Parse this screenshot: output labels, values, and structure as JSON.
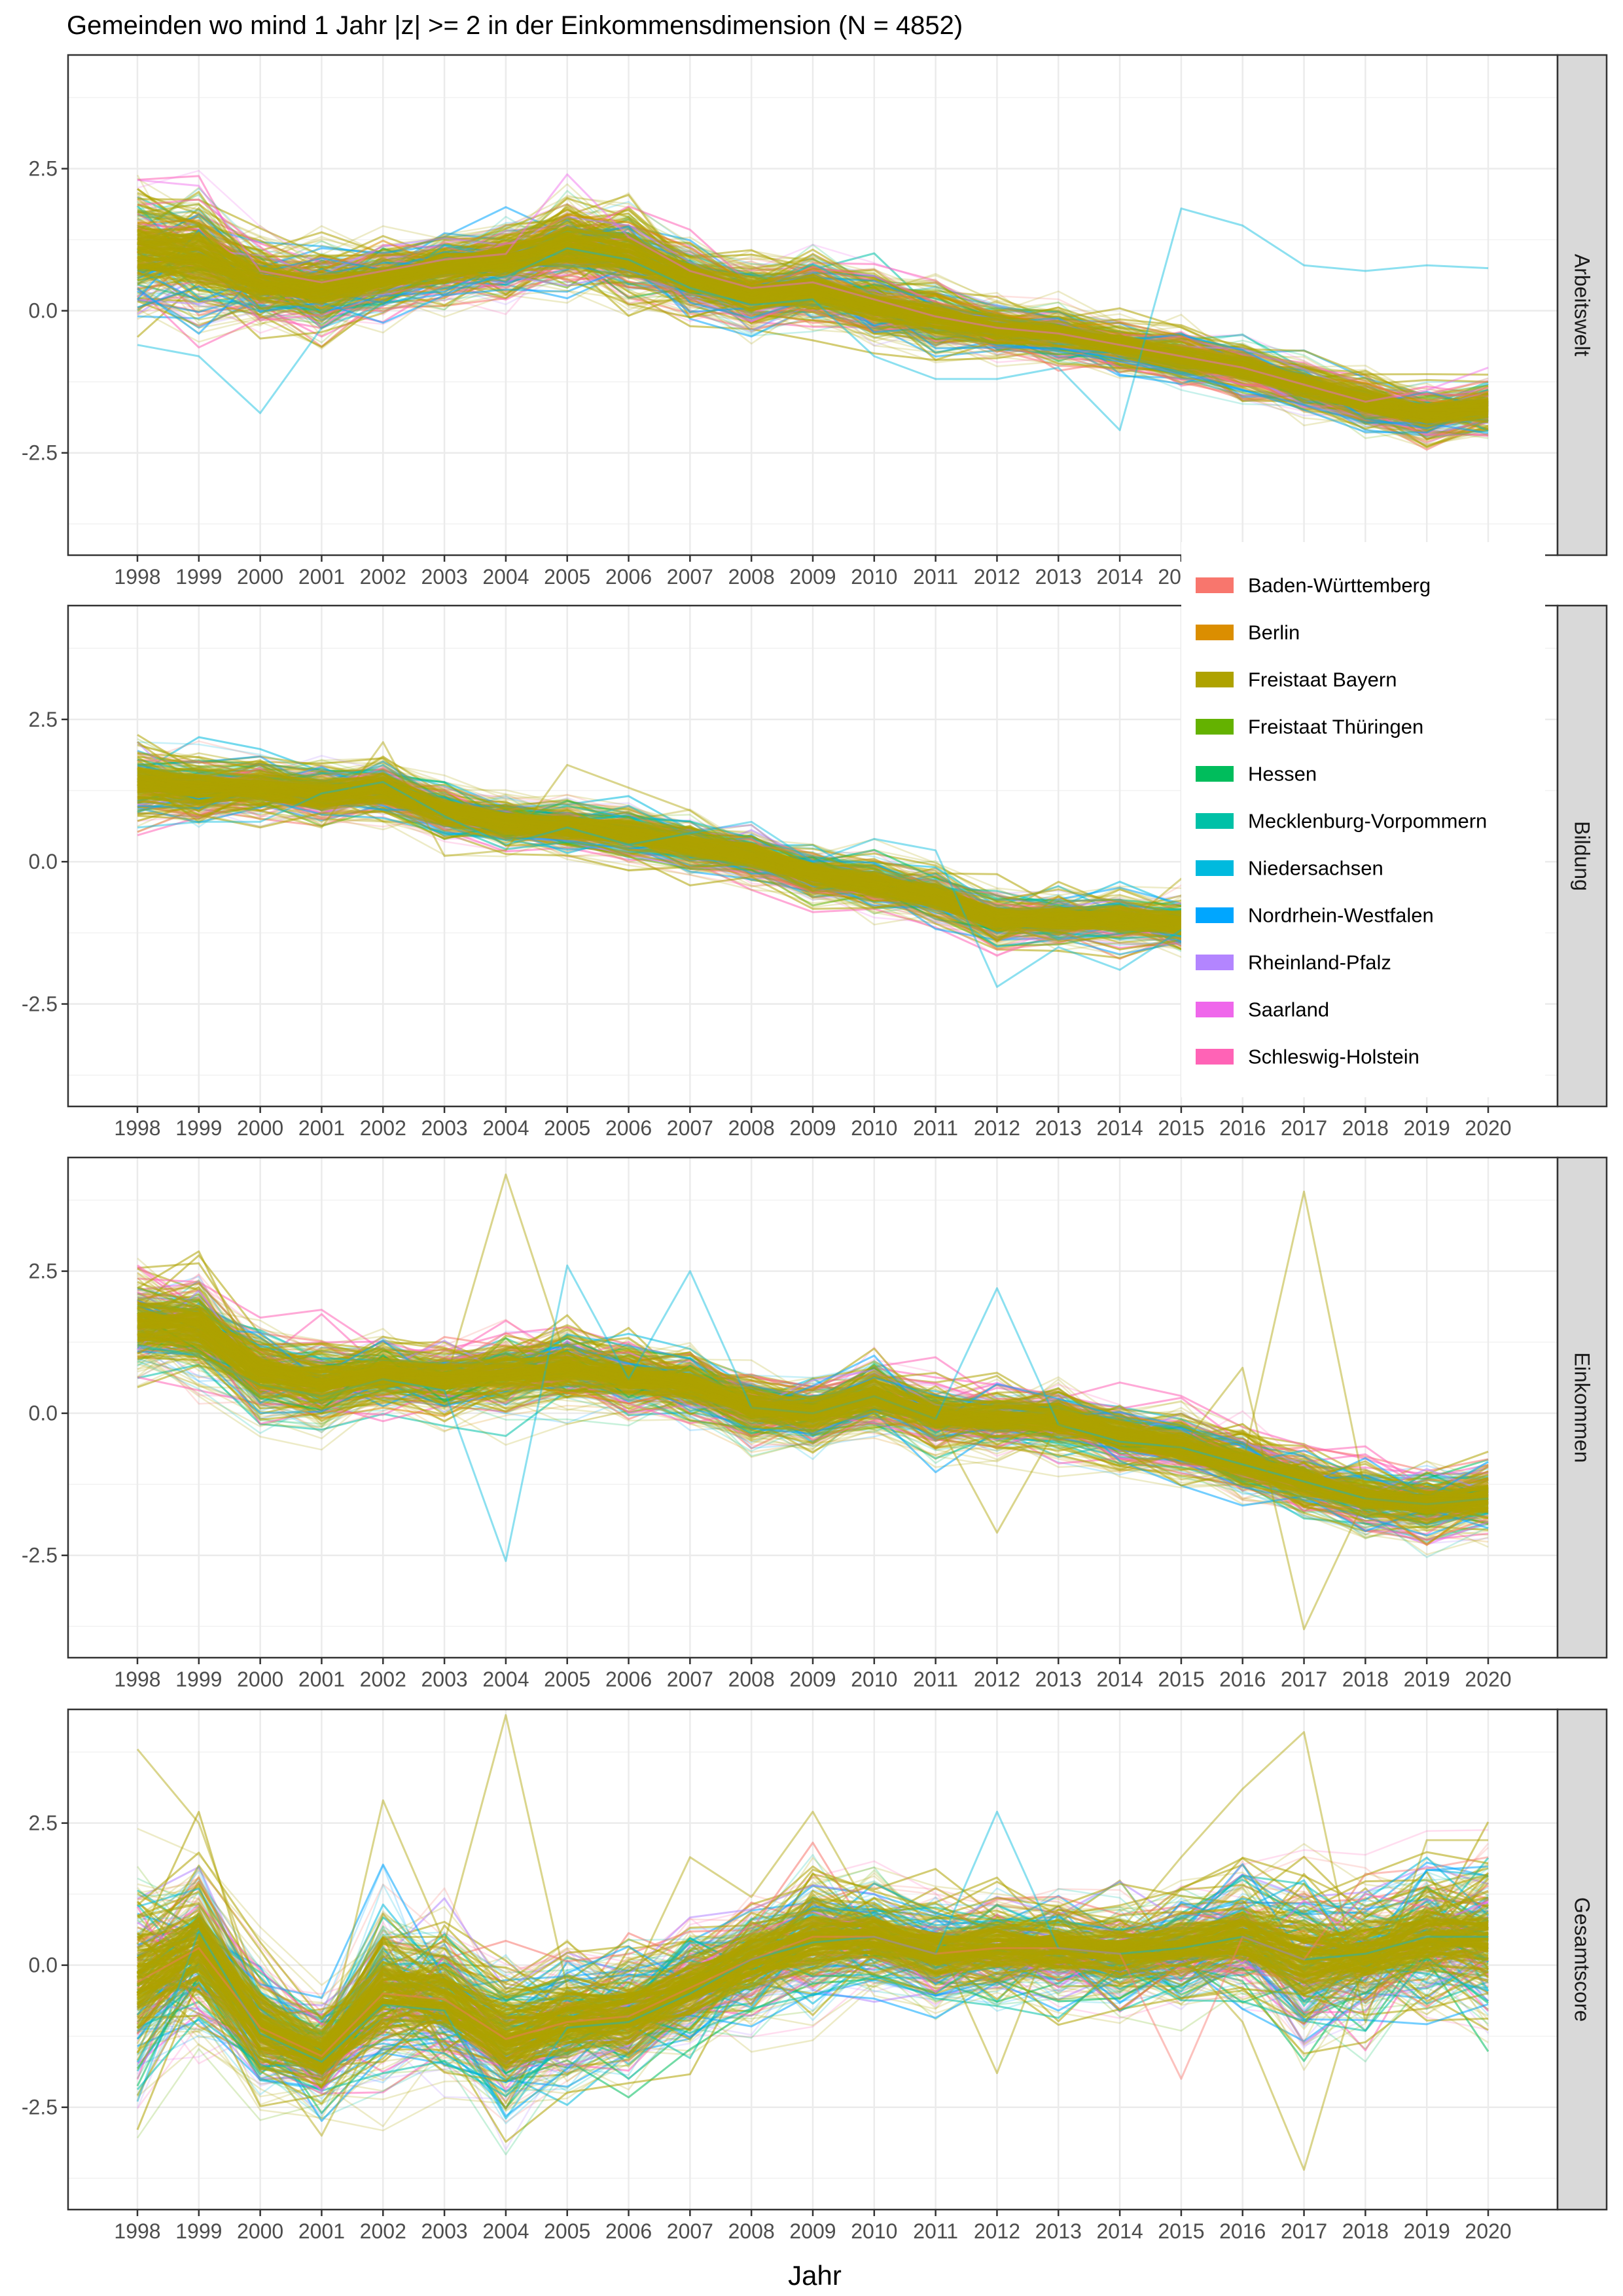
{
  "chart_data": {
    "type": "line",
    "title": "Gemeinden wo mind 1 Jahr |z| >= 2 in der Einkommensdimension (N = 4852)",
    "xlabel": "Jahr",
    "x": [
      1998,
      1999,
      2000,
      2001,
      2002,
      2003,
      2004,
      2005,
      2006,
      2007,
      2008,
      2009,
      2010,
      2011,
      2012,
      2013,
      2014,
      2015,
      2016,
      2017,
      2018,
      2019,
      2020
    ],
    "x_tick_labels": [
      "1998",
      "1999",
      "2000",
      "2001",
      "2002",
      "2003",
      "2004",
      "2005",
      "2006",
      "2007",
      "2008",
      "2009",
      "2010",
      "2011",
      "2012",
      "2013",
      "2014",
      "2015",
      "2016",
      "2017",
      "2018",
      "2019",
      "2020"
    ],
    "ylim": [
      -4.3,
      4.5
    ],
    "y_ticks": [
      2.5,
      0.0,
      -2.5
    ],
    "y_tick_labels": [
      "2.5",
      "0.0",
      "-2.5"
    ],
    "grid": true,
    "legend_position": "right (overlapping upper panels)",
    "legend": [
      {
        "name": "Baden-Württemberg",
        "color": "#F8766D"
      },
      {
        "name": "Berlin",
        "color": "#DB8E00"
      },
      {
        "name": "Freistaat Bayern",
        "color": "#AEA200"
      },
      {
        "name": "Freistaat Thüringen",
        "color": "#64B200"
      },
      {
        "name": "Hessen",
        "color": "#00BD5C"
      },
      {
        "name": "Mecklenburg-Vorpommern",
        "color": "#00C1A7"
      },
      {
        "name": "Niedersachsen",
        "color": "#00BADE"
      },
      {
        "name": "Nordrhein-Westfalen",
        "color": "#00A6FF"
      },
      {
        "name": "Rheinland-Pfalz",
        "color": "#B385FF"
      },
      {
        "name": "Saarland",
        "color": "#EF67EB"
      },
      {
        "name": "Schleswig-Holstein",
        "color": "#FF63B6"
      }
    ],
    "panels": [
      {
        "label": "Arbeitswelt",
        "central_trend": [
          1.1,
          1.0,
          0.5,
          0.4,
          0.6,
          0.8,
          0.9,
          1.2,
          1.0,
          0.6,
          0.3,
          0.4,
          0.1,
          -0.1,
          -0.3,
          -0.4,
          -0.6,
          -0.8,
          -1.0,
          -1.3,
          -1.6,
          -1.8,
          -1.7
        ],
        "spread": [
          0.7,
          0.7,
          0.5,
          0.5,
          0.4,
          0.4,
          0.4,
          0.5,
          0.5,
          0.4,
          0.4,
          0.4,
          0.4,
          0.4,
          0.3,
          0.3,
          0.3,
          0.3,
          0.3,
          0.3,
          0.3,
          0.3,
          0.3
        ],
        "outliers": [
          {
            "values": [
              -0.6,
              -0.8,
              -1.8,
              -0.3,
              0.1,
              0.4,
              0.6,
              1.1,
              0.9,
              0.4,
              0.1,
              0.2,
              -0.8,
              -1.2,
              -1.2,
              -1.0,
              -2.1,
              1.8,
              1.5,
              0.8,
              0.7,
              0.8,
              0.75
            ],
            "series": "Niedersachsen"
          },
          {
            "values": [
              2.3,
              2.2,
              0.7,
              0.5,
              0.7,
              0.9,
              1.0,
              2.4,
              1.3,
              0.7,
              0.4,
              0.5,
              0.2,
              -0.1,
              -0.3,
              -0.4,
              -0.6,
              -0.8,
              -1.0,
              -1.3,
              -1.6,
              -1.4,
              -1.0
            ],
            "series": "Saarland"
          }
        ]
      },
      {
        "label": "Bildung",
        "central_trend": [
          1.4,
          1.3,
          1.3,
          1.2,
          1.3,
          0.9,
          0.7,
          0.6,
          0.5,
          0.3,
          0.1,
          -0.2,
          -0.4,
          -0.6,
          -1.0,
          -1.0,
          -1.0,
          -1.1,
          -1.2,
          -1.3,
          -1.4,
          -1.5,
          -1.6
        ],
        "spread": [
          0.4,
          0.4,
          0.35,
          0.35,
          0.35,
          0.3,
          0.3,
          0.3,
          0.3,
          0.3,
          0.3,
          0.3,
          0.3,
          0.3,
          0.3,
          0.3,
          0.3,
          0.3,
          0.3,
          0.3,
          0.3,
          0.3,
          0.3
        ],
        "outliers": [
          {
            "values": [
              0.6,
              0.7,
              0.7,
              1.2,
              1.4,
              0.8,
              0.3,
              0.6,
              0.3,
              0.5,
              0.7,
              0.0,
              0.4,
              0.2,
              -2.2,
              -1.5,
              -1.9,
              -1.2,
              -1.2,
              -1.3,
              -1.4,
              -1.5,
              -1.6
            ],
            "series": "Niedersachsen"
          },
          {
            "values": [
              0.9,
              1.0,
              0.9,
              0.6,
              2.1,
              0.1,
              0.2,
              1.7,
              1.3,
              0.9,
              0.2,
              -0.4,
              -0.5,
              -0.6,
              -1.4,
              -0.6,
              -1.2,
              -0.3,
              -1.2,
              -1.3,
              -1.4,
              -1.5,
              -1.6
            ],
            "series": "Freistaat Bayern"
          }
        ]
      },
      {
        "label": "Einkommen",
        "central_trend": [
          1.6,
          1.5,
          0.7,
          0.5,
          0.7,
          0.6,
          0.7,
          0.8,
          0.6,
          0.5,
          0.1,
          0.0,
          0.3,
          -0.1,
          -0.1,
          -0.1,
          -0.4,
          -0.6,
          -0.9,
          -1.2,
          -1.5,
          -1.6,
          -1.5
        ],
        "spread": [
          0.6,
          0.6,
          0.5,
          0.5,
          0.4,
          0.4,
          0.45,
          0.45,
          0.4,
          0.4,
          0.4,
          0.4,
          0.4,
          0.4,
          0.4,
          0.4,
          0.4,
          0.4,
          0.4,
          0.4,
          0.4,
          0.4,
          0.4
        ],
        "outliers": [
          {
            "values": [
              1.2,
              1.0,
              0.6,
              0.4,
              0.6,
              0.5,
              4.2,
              0.9,
              0.7,
              0.5,
              0.2,
              0.1,
              0.3,
              -0.1,
              -0.2,
              -0.2,
              -0.5,
              -0.6,
              -0.9,
              3.9,
              -1.4,
              -1.5,
              -1.5
            ],
            "series": "Freistaat Bayern"
          },
          {
            "values": [
              1.2,
              1.0,
              0.5,
              0.3,
              0.6,
              0.4,
              -2.6,
              2.6,
              0.6,
              2.5,
              0.1,
              0.0,
              0.3,
              -0.1,
              2.2,
              -0.2,
              -0.5,
              -0.6,
              -0.9,
              -1.2,
              -1.5,
              -1.6,
              -1.5
            ],
            "series": "Niedersachsen"
          },
          {
            "values": [
              1.0,
              1.0,
              0.5,
              0.3,
              0.6,
              0.5,
              0.7,
              0.8,
              0.6,
              0.5,
              0.1,
              0.0,
              0.3,
              -0.1,
              -2.1,
              -0.2,
              -0.4,
              -0.6,
              0.8,
              -3.8,
              -1.5,
              -1.6,
              -1.5
            ],
            "series": "Freistaat Bayern"
          }
        ]
      },
      {
        "label": "Gesamtscore",
        "central_trend": [
          -0.3,
          0.3,
          -1.1,
          -1.6,
          -0.5,
          -0.6,
          -1.3,
          -1.0,
          -0.9,
          -0.4,
          0.1,
          0.5,
          0.5,
          0.2,
          0.3,
          0.3,
          0.2,
          0.3,
          0.5,
          0.1,
          0.2,
          0.5,
          0.5
        ],
        "spread": [
          1.2,
          1.0,
          0.8,
          0.6,
          1.0,
          0.9,
          0.8,
          0.8,
          0.7,
          0.7,
          0.7,
          0.8,
          0.6,
          0.6,
          0.6,
          0.6,
          0.6,
          0.6,
          0.7,
          1.0,
          0.8,
          0.8,
          0.9
        ],
        "outliers": [
          {
            "values": [
              3.8,
              2.5,
              -0.5,
              -1.8,
              2.9,
              0.4,
              4.4,
              -0.4,
              -0.4,
              1.9,
              1.2,
              2.7,
              0.8,
              0.5,
              -1.9,
              0.9,
              0.6,
              1.9,
              3.1,
              4.1,
              -1.0,
              2.2,
              2.2
            ],
            "series": "Freistaat Bayern"
          },
          {
            "values": [
              -2.4,
              0.6,
              -1.2,
              -1.7,
              -0.7,
              -0.8,
              -2.7,
              -1.1,
              -1.0,
              -0.5,
              0.1,
              0.4,
              0.5,
              0.2,
              2.7,
              0.3,
              0.2,
              0.3,
              0.5,
              0.1,
              0.2,
              0.5,
              0.5
            ],
            "series": "Niedersachsen"
          },
          {
            "values": [
              -1.0,
              0.3,
              -1.5,
              -3.0,
              -0.9,
              -0.9,
              -1.4,
              -1.3,
              -1.1,
              -0.6,
              0.0,
              0.3,
              0.4,
              0.1,
              0.2,
              0.2,
              0.1,
              0.2,
              -1.0,
              -3.6,
              0.1,
              0.4,
              -0.2
            ],
            "series": "Freistaat Bayern"
          },
          {
            "values": [
              -0.3,
              0.3,
              -1.1,
              -1.6,
              -0.5,
              -0.6,
              -1.3,
              -1.0,
              -0.9,
              -0.4,
              0.1,
              0.5,
              0.5,
              0.2,
              0.3,
              0.3,
              0.2,
              -2.0,
              0.5,
              0.1,
              1.6,
              1.7,
              1.9
            ],
            "series": "Baden-Württemberg"
          }
        ]
      }
    ]
  }
}
